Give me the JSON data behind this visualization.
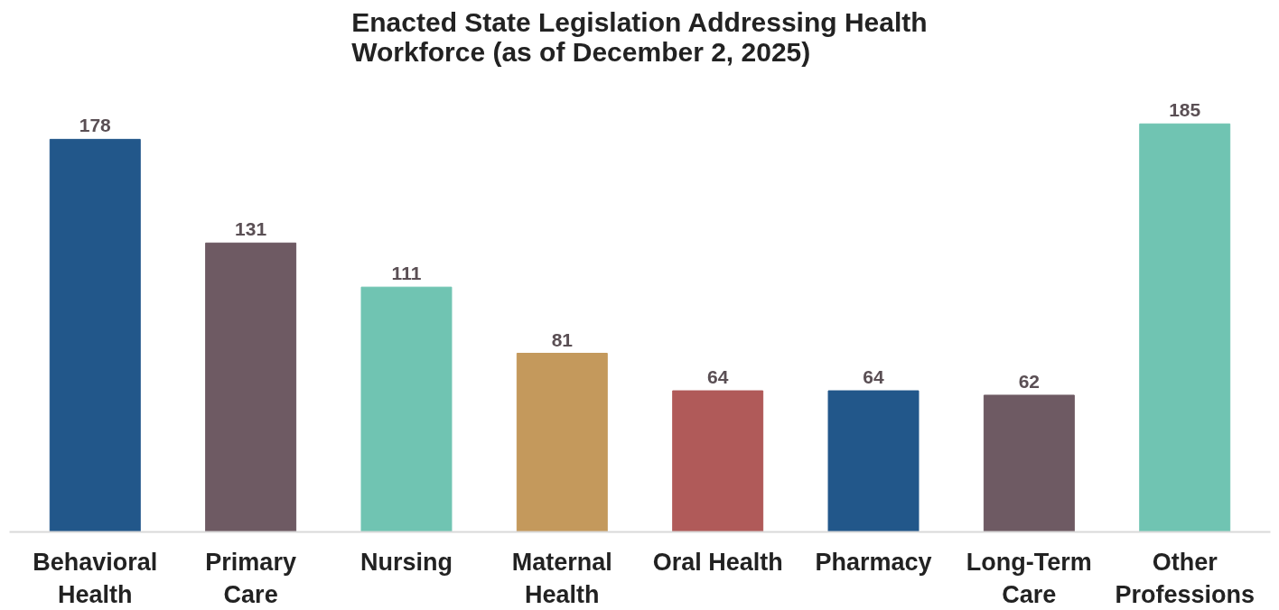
{
  "chart_data": {
    "type": "bar",
    "title": "Enacted State Legislation Addressing Health Workforce (as of December 2, 2025)",
    "categories": [
      "Behavioral Health",
      "Primary Care",
      "Nursing",
      "Maternal Health",
      "Oral Health",
      "Pharmacy",
      "Long-Term Care",
      "Other Professions"
    ],
    "values": [
      178,
      131,
      111,
      81,
      64,
      64,
      62,
      185
    ],
    "colors": [
      "#22578a",
      "#6e5a63",
      "#70c4b2",
      "#c4995c",
      "#b05a59",
      "#22578a",
      "#6e5a63",
      "#70c4b2"
    ],
    "data_labels": true,
    "grid": false
  }
}
